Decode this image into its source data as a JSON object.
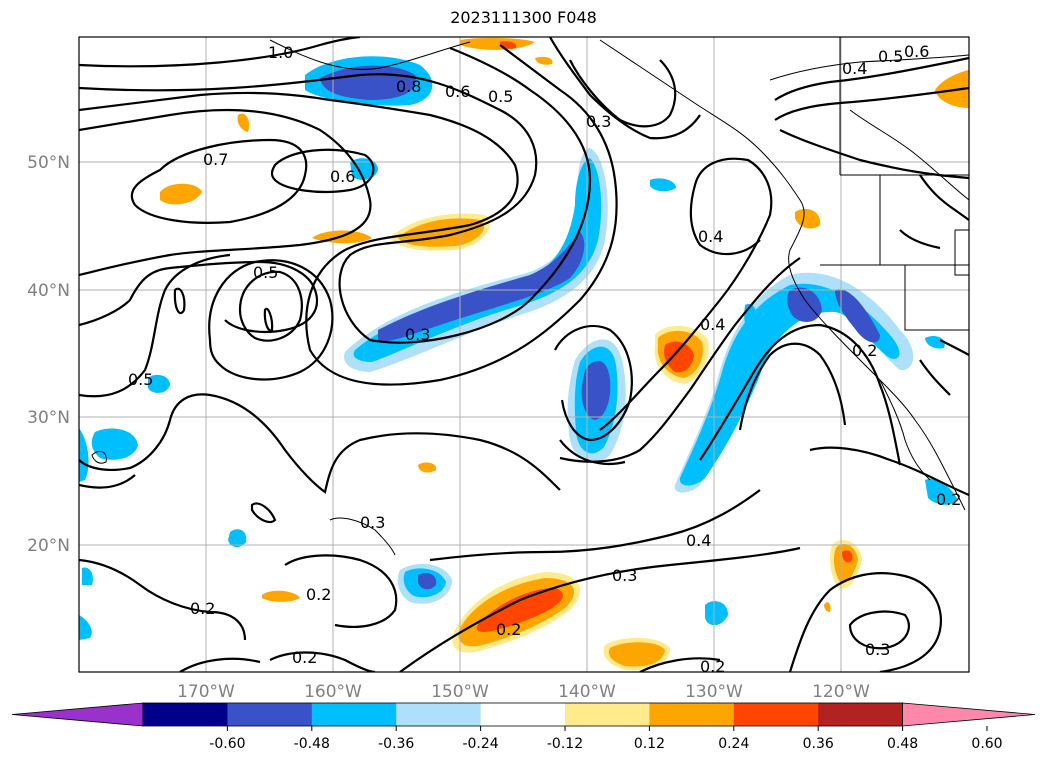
{
  "title": "2023111300 F048",
  "lon_labels": [
    "170°W",
    "160°W",
    "150°W",
    "140°W",
    "130°W",
    "120°W"
  ],
  "lat_labels": [
    "50°N",
    "40°N",
    "30°N",
    "20°N"
  ],
  "contour_labels": [
    "0.6",
    "0.5",
    "0.4",
    "0.8",
    "1.0",
    "0.7",
    "0.6",
    "0.5",
    "0.3",
    "0.5",
    "0.4",
    "0.5",
    "0.3",
    "0.2",
    "0.4",
    "0.3",
    "0.4",
    "0.3",
    "0.2",
    "0.2",
    "0.2",
    "0.2",
    "0.2",
    "0.3",
    "0.6",
    "0.2"
  ],
  "colorbar": {
    "ticks": [
      "-0.60",
      "-0.48",
      "-0.36",
      "-0.24",
      "-0.12",
      "0.12",
      "0.24",
      "0.36",
      "0.48",
      "0.60"
    ],
    "colors": [
      "#9932cc",
      "#00008b",
      "#3a52c8",
      "#00bfff",
      "#aee0fa",
      "#ffffff",
      "#ffeb8c",
      "#ffa500",
      "#ff4500",
      "#b22222",
      "#ff88aa"
    ]
  }
}
